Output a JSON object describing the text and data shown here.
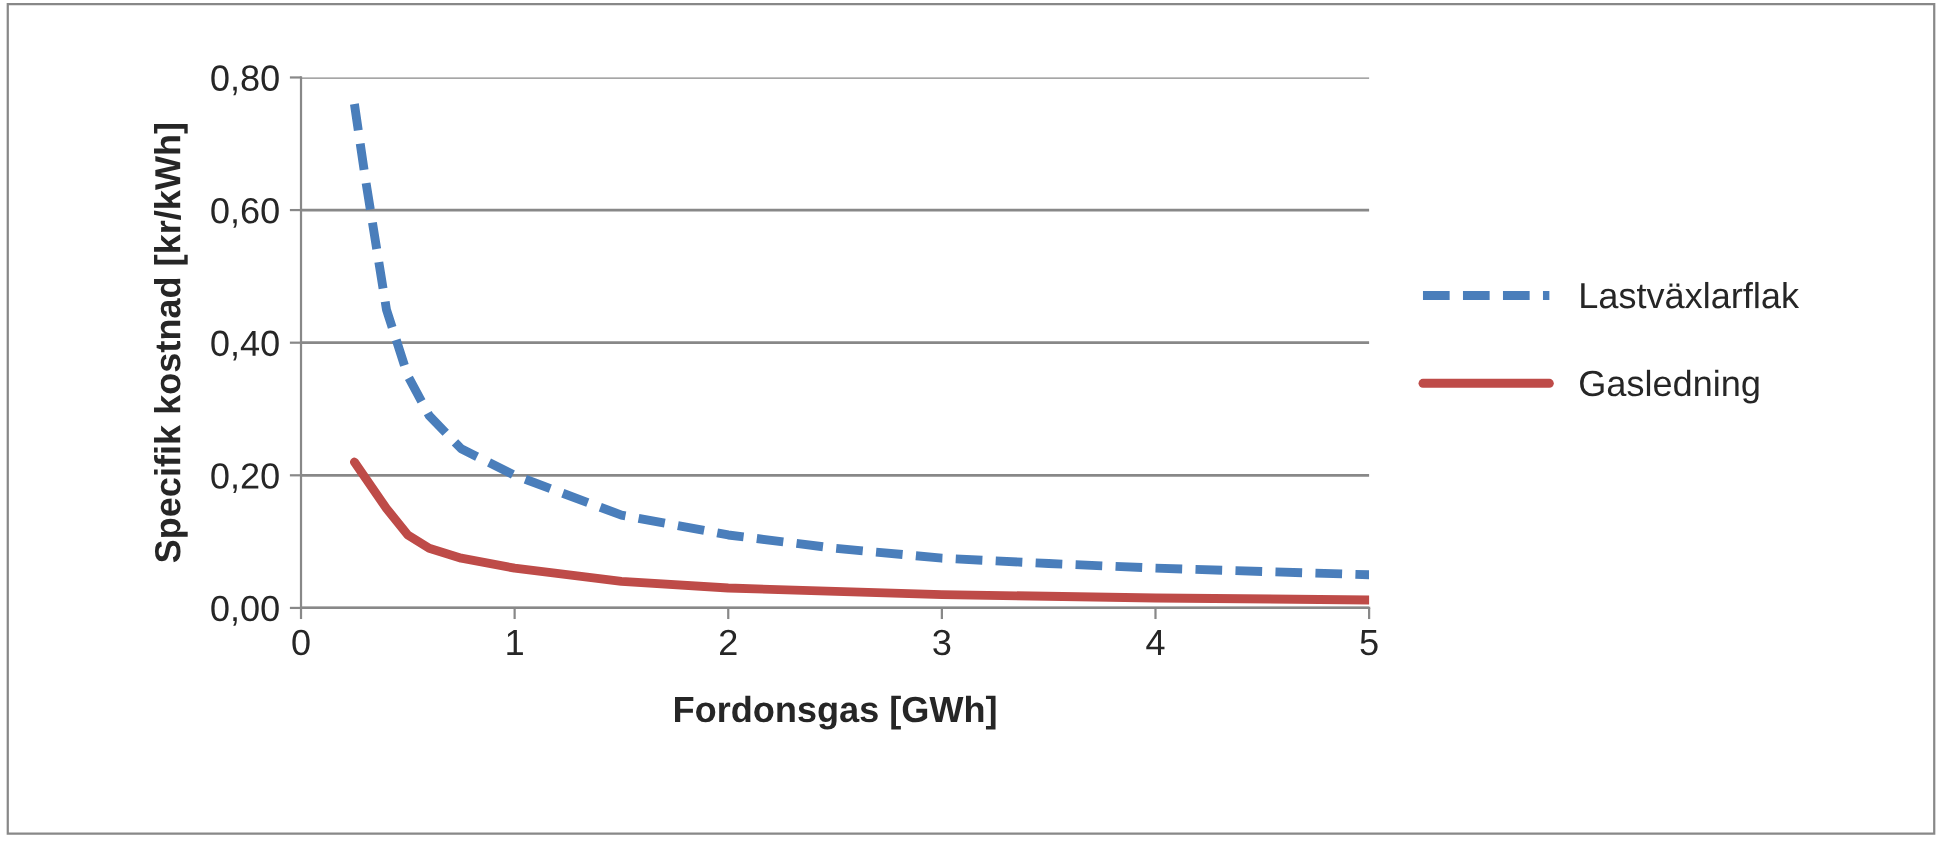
{
  "chart_data": {
    "type": "line",
    "xlabel": "Fordonsgas [GWh]",
    "ylabel": "Specifik kostnad [kr/kWh]",
    "xlim": [
      0,
      5
    ],
    "xticks": [
      0,
      1,
      2,
      3,
      4,
      5
    ],
    "ylim": [
      0,
      0.8
    ],
    "yticks": [
      {
        "value": 0,
        "label": "0,00"
      },
      {
        "value": 0.2,
        "label": "0,20"
      },
      {
        "value": 0.4,
        "label": "0,40"
      },
      {
        "value": 0.6,
        "label": "0,60"
      },
      {
        "value": 0.8,
        "label": "0,80"
      }
    ],
    "grid": "y",
    "legend": "right",
    "marker": "none",
    "series": [
      {
        "name": "Lastväxlarflak",
        "color": "#4a7ebb",
        "line_style": "dashed",
        "x": [
          0.25,
          0.3,
          0.4,
          0.5,
          0.6,
          0.75,
          1,
          1.5,
          2,
          2.5,
          3,
          3.5,
          4,
          4.5,
          5
        ],
        "values": [
          0.76,
          0.65,
          0.45,
          0.35,
          0.29,
          0.24,
          0.2,
          0.14,
          0.11,
          0.09,
          0.075,
          0.067,
          0.06,
          0.055,
          0.05
        ]
      },
      {
        "name": "Gasledning",
        "color": "#be4b48",
        "line_style": "solid",
        "x": [
          0.25,
          0.4,
          0.5,
          0.6,
          0.75,
          1,
          1.5,
          2,
          3,
          4,
          5
        ],
        "values": [
          0.22,
          0.15,
          0.11,
          0.09,
          0.075,
          0.06,
          0.04,
          0.03,
          0.02,
          0.015,
          0.012
        ]
      }
    ]
  }
}
